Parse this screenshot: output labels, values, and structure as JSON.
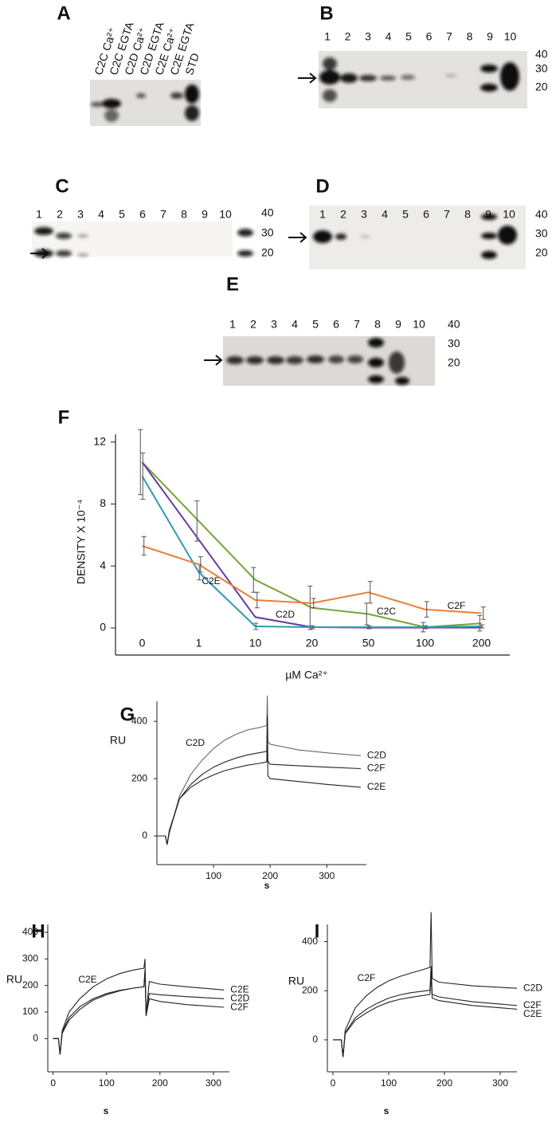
{
  "panels": {
    "A": {
      "label": "A",
      "lanes": [
        "C2C Ca²⁺",
        "C2C EGTA",
        "C2D Ca²⁺",
        "C2D EGTA",
        "C2E Ca²⁺",
        "C2E EGTA",
        "STD"
      ]
    },
    "B": {
      "label": "B",
      "lanes": [
        1,
        2,
        3,
        4,
        5,
        6,
        7,
        8,
        9,
        10
      ],
      "markers": [
        40,
        30,
        20
      ]
    },
    "C": {
      "label": "C",
      "lanes": [
        1,
        2,
        3,
        4,
        5,
        6,
        7,
        8,
        9,
        10
      ],
      "markers": [
        40,
        30,
        20
      ]
    },
    "D": {
      "label": "D",
      "lanes": [
        1,
        2,
        3,
        4,
        5,
        6,
        7,
        8,
        9,
        10
      ],
      "markers": [
        40,
        30,
        20
      ]
    },
    "E": {
      "label": "E",
      "lanes": [
        1,
        2,
        3,
        4,
        5,
        6,
        7,
        8,
        9,
        10
      ],
      "markers": [
        40,
        30,
        20
      ]
    }
  },
  "chart_data": [
    {
      "type": "line",
      "label": "F",
      "ylabel": "DENSITY X 10⁻⁴",
      "xlabel": "µM Ca²⁺",
      "categories": [
        "0",
        "1",
        "10",
        "20",
        "50",
        "100",
        "200"
      ],
      "ylim": [
        -1.75,
        12.5
      ],
      "yticks": [
        0,
        4,
        8,
        12
      ],
      "series": [
        {
          "name": "C2C",
          "color": "#77a33a",
          "values": [
            10.7,
            6.9,
            3.1,
            1.3,
            0.9,
            0.05,
            0.3
          ],
          "errors": [
            2.1,
            1.3,
            0.8,
            1.4,
            0.7,
            0.3,
            0.5
          ]
        },
        {
          "name": "C2D",
          "color": "#6a3d9a",
          "values": [
            10.7,
            5.7,
            0.7,
            0.05,
            0.02,
            0.02,
            0.02
          ]
        },
        {
          "name": "C2E",
          "color": "#2e9ab5",
          "values": [
            9.8,
            3.6,
            0.1,
            0.05,
            0.05,
            0.05,
            0.1
          ],
          "errors": [
            1.5,
            0.5,
            0.2,
            0.1,
            0.1,
            0.1,
            0.1
          ]
        },
        {
          "name": "C2F",
          "color": "#e8803a",
          "values": [
            5.3,
            4.1,
            1.8,
            1.6,
            2.3,
            1.2,
            0.95
          ],
          "errors": [
            0.6,
            0.5,
            0.5,
            0.3,
            0.7,
            0.5,
            0.4
          ]
        }
      ]
    },
    {
      "type": "line",
      "label": "G",
      "annotation": "C2D",
      "ylabel": "RU",
      "xlabel": "s",
      "x": [
        0,
        15,
        18,
        22,
        40,
        60,
        80,
        100,
        120,
        140,
        160,
        180,
        194,
        195,
        196,
        200,
        250,
        300,
        360
      ],
      "xlim": [
        0,
        370
      ],
      "xticks": [
        100,
        200,
        300
      ],
      "ylim": [
        -100,
        470
      ],
      "yticks": [
        0,
        200,
        400
      ],
      "series": [
        {
          "name": "C2D",
          "color": "#666666",
          "values": [
            0,
            0,
            -30,
            10,
            140,
            215,
            265,
            305,
            335,
            355,
            370,
            378,
            385,
            490,
            330,
            320,
            300,
            290,
            280
          ]
        },
        {
          "name": "C2F",
          "color": "#222222",
          "values": [
            0,
            0,
            -30,
            15,
            130,
            180,
            215,
            240,
            258,
            272,
            283,
            290,
            295,
            420,
            260,
            250,
            245,
            240,
            235
          ]
        },
        {
          "name": "C2E",
          "color": "#222222",
          "values": [
            0,
            0,
            -30,
            20,
            130,
            170,
            195,
            213,
            228,
            238,
            247,
            253,
            258,
            400,
            210,
            200,
            190,
            180,
            170
          ]
        }
      ]
    },
    {
      "type": "line",
      "label": "H",
      "annotation": "C2E",
      "ylabel": "RU",
      "xlabel": "s",
      "x": [
        0,
        10,
        13,
        17,
        30,
        50,
        75,
        100,
        125,
        150,
        170,
        172,
        174,
        180,
        200,
        250,
        320
      ],
      "xlim": [
        -10,
        330
      ],
      "xticks": [
        0,
        100,
        200,
        300
      ],
      "ylim": [
        -125,
        430
      ],
      "yticks": [
        0,
        100,
        200,
        300,
        400
      ],
      "series": [
        {
          "name": "C2E",
          "color": "#222222",
          "values": [
            0,
            0,
            -60,
            30,
            100,
            150,
            195,
            225,
            245,
            258,
            265,
            300,
            90,
            215,
            205,
            195,
            183
          ]
        },
        {
          "name": "C2D",
          "color": "#222222",
          "values": [
            0,
            0,
            -60,
            20,
            70,
            110,
            145,
            165,
            180,
            190,
            195,
            260,
            95,
            170,
            165,
            158,
            150
          ]
        },
        {
          "name": "C2F",
          "color": "#222222",
          "values": [
            0,
            0,
            -60,
            25,
            80,
            120,
            150,
            170,
            182,
            190,
            195,
            250,
            85,
            150,
            140,
            128,
            118
          ]
        }
      ]
    },
    {
      "type": "line",
      "label": "I",
      "annotation": "C2F",
      "ylabel": "RU",
      "xlabel": "s",
      "x": [
        0,
        15,
        18,
        22,
        40,
        60,
        80,
        100,
        120,
        140,
        160,
        174,
        176,
        178,
        190,
        250,
        330
      ],
      "xlim": [
        -10,
        330
      ],
      "xticks": [
        0,
        100,
        200,
        300
      ],
      "ylim": [
        -130,
        470
      ],
      "yticks": [
        0,
        200,
        400
      ],
      "series": [
        {
          "name": "C2D",
          "color": "#222222",
          "values": [
            0,
            0,
            -70,
            40,
            130,
            180,
            215,
            240,
            258,
            272,
            285,
            295,
            520,
            250,
            235,
            220,
            210
          ]
        },
        {
          "name": "C2F",
          "color": "#222222",
          "values": [
            0,
            0,
            -70,
            30,
            90,
            125,
            150,
            170,
            183,
            192,
            198,
            202,
            300,
            185,
            175,
            155,
            140
          ]
        },
        {
          "name": "C2E",
          "color": "#222222",
          "values": [
            0,
            0,
            -70,
            25,
            80,
            110,
            135,
            153,
            165,
            173,
            180,
            185,
            260,
            170,
            160,
            140,
            125
          ]
        }
      ]
    }
  ]
}
